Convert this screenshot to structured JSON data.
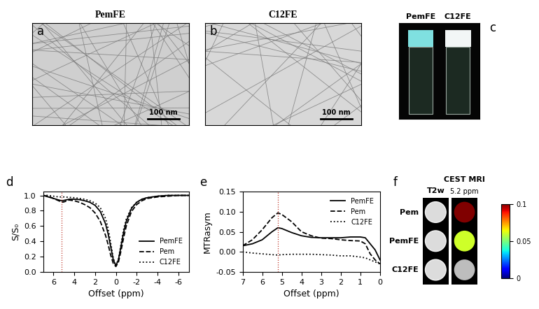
{
  "panels": {
    "a": {
      "label": "a",
      "title": "PemFE",
      "scale_bar": "100 nm"
    },
    "b": {
      "label": "b",
      "title": "C12FE",
      "scale_bar": "100 nm"
    },
    "c": {
      "label": "c",
      "vials": [
        "PemFE",
        "C12FE"
      ]
    },
    "f": {
      "label": "f",
      "column_titles": [
        "T2w",
        "CEST MRI"
      ],
      "cest_subtitle": "5.2 ppm",
      "rows": [
        "Pem",
        "PemFE",
        "C12FE"
      ],
      "cest_values": [
        0.1,
        0.06,
        null
      ],
      "colorbar": {
        "range": [
          0,
          0.1
        ],
        "ticks": [
          0,
          0.05,
          0.1
        ]
      }
    }
  },
  "chart_data": [
    {
      "type": "line",
      "label": "d",
      "xlabel": "Offset (ppm)",
      "ylabel": "S/S₀",
      "xlim": [
        7,
        -7
      ],
      "xticks": [
        6,
        4,
        2,
        0,
        -2,
        -4,
        -6
      ],
      "ylim": [
        0,
        1.05
      ],
      "yticks": [
        {
          "value": 0,
          "label": "0.0"
        },
        0.2,
        0.4,
        0.6,
        0.8,
        {
          "value": 1,
          "label": "1.0"
        }
      ],
      "grid": false,
      "legend": "lower right",
      "vline": {
        "x": 5.2,
        "color": "#c0392b",
        "line_style": "dotted"
      },
      "x": [
        7,
        6.5,
        6,
        5.5,
        5.2,
        5,
        4.5,
        4,
        3.5,
        3,
        2.5,
        2,
        1.5,
        1,
        0.75,
        0.5,
        0.25,
        0,
        -0.25,
        -0.5,
        -0.75,
        -1,
        -1.5,
        -2,
        -2.5,
        -3,
        -4,
        -5,
        -6,
        -7
      ],
      "series": [
        {
          "name": "PemFE",
          "color": "#000000",
          "line_style": "solid",
          "values": [
            1.0,
            0.98,
            0.96,
            0.94,
            0.93,
            0.935,
            0.95,
            0.95,
            0.945,
            0.93,
            0.91,
            0.87,
            0.79,
            0.63,
            0.5,
            0.33,
            0.16,
            0.08,
            0.16,
            0.34,
            0.52,
            0.66,
            0.83,
            0.91,
            0.95,
            0.97,
            0.99,
            1.0,
            1.0,
            1.0
          ]
        },
        {
          "name": "Pem",
          "color": "#000000",
          "line_style": "dashed",
          "values": [
            1.0,
            0.99,
            0.96,
            0.93,
            0.91,
            0.915,
            0.94,
            0.93,
            0.91,
            0.88,
            0.84,
            0.77,
            0.66,
            0.48,
            0.36,
            0.22,
            0.11,
            0.07,
            0.13,
            0.28,
            0.45,
            0.6,
            0.79,
            0.88,
            0.93,
            0.96,
            0.98,
            0.99,
            1.0,
            1.0
          ]
        },
        {
          "name": "C12FE",
          "color": "#000000",
          "line_style": "dotted",
          "values": [
            1.0,
            1.0,
            0.99,
            0.98,
            0.98,
            0.98,
            0.975,
            0.97,
            0.96,
            0.95,
            0.93,
            0.9,
            0.84,
            0.7,
            0.57,
            0.38,
            0.18,
            0.08,
            0.17,
            0.37,
            0.56,
            0.69,
            0.84,
            0.91,
            0.95,
            0.97,
            0.99,
            1.0,
            1.0,
            1.0
          ]
        }
      ]
    },
    {
      "type": "line",
      "label": "e",
      "xlabel": "Offset (ppm)",
      "ylabel": "MTRasym",
      "xlim": [
        7,
        0
      ],
      "xticks": [
        7,
        6,
        5,
        4,
        3,
        2,
        1,
        0
      ],
      "ylim": [
        -0.05,
        0.15
      ],
      "yticks": [
        -0.05,
        {
          "value": 0,
          "label": "0.00"
        },
        0.05,
        {
          "value": 0.1,
          "label": "0.10"
        },
        0.15
      ],
      "grid": false,
      "legend": "upper right",
      "vline": {
        "x": 5.2,
        "color": "#c0392b",
        "line_style": "dotted"
      },
      "x": [
        7,
        6.5,
        6,
        5.5,
        5.2,
        5,
        4.5,
        4,
        3.5,
        3,
        2.5,
        2,
        1.5,
        1,
        0.75,
        0.5,
        0.25,
        0
      ],
      "series": [
        {
          "name": "PemFE",
          "color": "#000000",
          "line_style": "solid",
          "values": [
            0.015,
            0.02,
            0.03,
            0.05,
            0.06,
            0.058,
            0.048,
            0.04,
            0.036,
            0.035,
            0.035,
            0.035,
            0.037,
            0.037,
            0.035,
            0.02,
            0.005,
            -0.02
          ]
        },
        {
          "name": "Pem",
          "color": "#000000",
          "line_style": "dashed",
          "values": [
            0.015,
            0.03,
            0.055,
            0.085,
            0.097,
            0.093,
            0.075,
            0.05,
            0.04,
            0.034,
            0.033,
            0.03,
            0.028,
            0.027,
            0.02,
            -0.005,
            -0.02,
            -0.03
          ]
        },
        {
          "name": "C12FE",
          "color": "#000000",
          "line_style": "dotted",
          "values": [
            0.0,
            -0.003,
            -0.005,
            -0.007,
            -0.008,
            -0.007,
            -0.006,
            -0.006,
            -0.006,
            -0.007,
            -0.008,
            -0.01,
            -0.01,
            -0.013,
            -0.015,
            -0.02,
            -0.025,
            -0.03
          ]
        }
      ]
    }
  ]
}
